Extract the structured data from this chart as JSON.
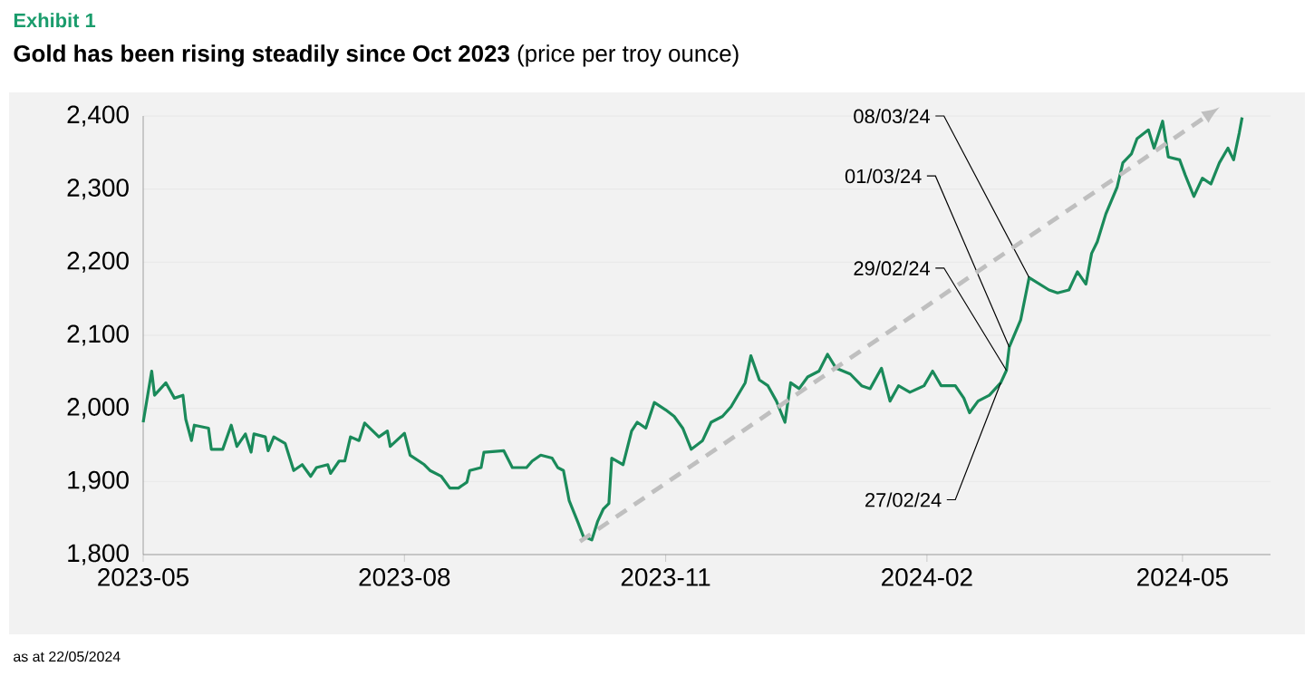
{
  "chart_data": {
    "type": "line",
    "title": "Exhibit 1",
    "subtitle": "**Gold has been rising steadily since Oct 2023** (price per troy ounce)",
    "annotations": [
      {
        "text": "27/02/24",
        "x": "2024-02-27",
        "y": 2035
      },
      {
        "text": "29/02/24",
        "x": "2024-02-29",
        "y": 2052
      },
      {
        "text": "01/03/24",
        "x": "2024-03-01",
        "y": 2084
      },
      {
        "text": "08/03/24",
        "x": "2024-03-08",
        "y": 2179
      },
      "as at 22/05/2024"
    ],
    "xlim": [
      "2023-05-01",
      "2024-06-01"
    ],
    "xticks": [
      {
        "value": "2023-05",
        "label": "2023-05"
      },
      {
        "value": "2023-08",
        "label": "2023-08"
      },
      {
        "value": "2023-11",
        "label": "2023-11"
      },
      {
        "value": "2024-02",
        "label": "2024-02"
      },
      {
        "value": "2024-05",
        "label": "2024-05"
      }
    ],
    "ylim": [
      1800,
      2400
    ],
    "yticks": [
      {
        "value": 1800,
        "label": "1,800"
      },
      {
        "value": 1900,
        "label": "1,900"
      },
      {
        "value": 2000,
        "label": "2,000"
      },
      {
        "value": 2100,
        "label": "2,100"
      },
      {
        "value": 2200,
        "label": "2,200"
      },
      {
        "value": 2300,
        "label": "2,300"
      },
      {
        "value": 2400,
        "label": "2,400"
      }
    ],
    "grid": "y",
    "series": [
      {
        "type": "line",
        "color": "#1a8a5a",
        "x": [
          "2023-05-01",
          "2023-05-04",
          "2023-05-05",
          "2023-05-09",
          "2023-05-12",
          "2023-05-15",
          "2023-05-16",
          "2023-05-18",
          "2023-05-19",
          "2023-05-24",
          "2023-05-25",
          "2023-05-29",
          "2023-06-01",
          "2023-06-03",
          "2023-06-06",
          "2023-06-08",
          "2023-06-09",
          "2023-06-13",
          "2023-06-14",
          "2023-06-16",
          "2023-06-20",
          "2023-06-23",
          "2023-06-26",
          "2023-06-29",
          "2023-07-01",
          "2023-07-05",
          "2023-07-06",
          "2023-07-09",
          "2023-07-11",
          "2023-07-13",
          "2023-07-16",
          "2023-07-18",
          "2023-07-23",
          "2023-07-26",
          "2023-07-27",
          "2023-08-01",
          "2023-08-03",
          "2023-08-08",
          "2023-08-10",
          "2023-08-14",
          "2023-08-17",
          "2023-08-20",
          "2023-08-23",
          "2023-08-24",
          "2023-08-28",
          "2023-08-29",
          "2023-09-05",
          "2023-09-08",
          "2023-09-13",
          "2023-09-15",
          "2023-09-18",
          "2023-09-22",
          "2023-09-24",
          "2023-09-26",
          "2023-09-28",
          "2023-10-01",
          "2023-10-03",
          "2023-10-06",
          "2023-10-08",
          "2023-10-10",
          "2023-10-12",
          "2023-10-13",
          "2023-10-17",
          "2023-10-20",
          "2023-10-22",
          "2023-10-25",
          "2023-10-28",
          "2023-11-01",
          "2023-11-04",
          "2023-11-07",
          "2023-11-10",
          "2023-11-14",
          "2023-11-17",
          "2023-11-21",
          "2023-11-24",
          "2023-11-29",
          "2023-12-01",
          "2023-12-04",
          "2023-12-07",
          "2023-12-10",
          "2023-12-13",
          "2023-12-15",
          "2023-12-18",
          "2023-12-21",
          "2023-12-25",
          "2023-12-28",
          "2023-12-31",
          "2024-01-05",
          "2024-01-09",
          "2024-01-12",
          "2024-01-16",
          "2024-01-19",
          "2024-01-22",
          "2024-01-26",
          "2024-01-31",
          "2024-02-03",
          "2024-02-06",
          "2024-02-11",
          "2024-02-14",
          "2024-02-16",
          "2024-02-19",
          "2024-02-23",
          "2024-02-27",
          "2024-02-29",
          "2024-03-01",
          "2024-03-05",
          "2024-03-08",
          "2024-03-15",
          "2024-03-18",
          "2024-03-22",
          "2024-03-25",
          "2024-03-28",
          "2024-03-30",
          "2024-04-01",
          "2024-04-04",
          "2024-04-08",
          "2024-04-10",
          "2024-04-13",
          "2024-04-15",
          "2024-04-19",
          "2024-04-21",
          "2024-04-24",
          "2024-04-26",
          "2024-04-30",
          "2024-05-02",
          "2024-05-05",
          "2024-05-08",
          "2024-05-11",
          "2024-05-14",
          "2024-05-17",
          "2024-05-19",
          "2024-05-21",
          "2024-05-22"
        ],
        "values": [
          1981,
          2051,
          2018,
          2035,
          2014,
          2018,
          1985,
          1956,
          1977,
          1973,
          1944,
          1944,
          1977,
          1948,
          1965,
          1940,
          1965,
          1961,
          1942,
          1961,
          1952,
          1915,
          1923,
          1907,
          1919,
          1923,
          1911,
          1928,
          1928,
          1961,
          1956,
          1980,
          1961,
          1969,
          1948,
          1966,
          1936,
          1923,
          1915,
          1907,
          1891,
          1891,
          1899,
          1915,
          1919,
          1940,
          1942,
          1919,
          1919,
          1928,
          1936,
          1932,
          1919,
          1915,
          1874,
          1845,
          1825,
          1820,
          1845,
          1862,
          1870,
          1932,
          1923,
          1969,
          1981,
          1973,
          2008,
          1998,
          1989,
          1973,
          1944,
          1956,
          1981,
          1989,
          2002,
          2035,
          2072,
          2039,
          2031,
          2010,
          1981,
          2035,
          2027,
          2043,
          2051,
          2074,
          2055,
          2047,
          2031,
          2027,
          2055,
          2010,
          2031,
          2022,
          2031,
          2051,
          2031,
          2031,
          2014,
          1994,
          2010,
          2018,
          2035,
          2052,
          2084,
          2121,
          2179,
          2162,
          2158,
          2162,
          2187,
          2170,
          2212,
          2228,
          2266,
          2303,
          2336,
          2348,
          2369,
          2381,
          2356,
          2393,
          2344,
          2340,
          2319,
          2290,
          2315,
          2307,
          2336,
          2356,
          2340,
          2377,
          2398
        ]
      }
    ]
  }
}
